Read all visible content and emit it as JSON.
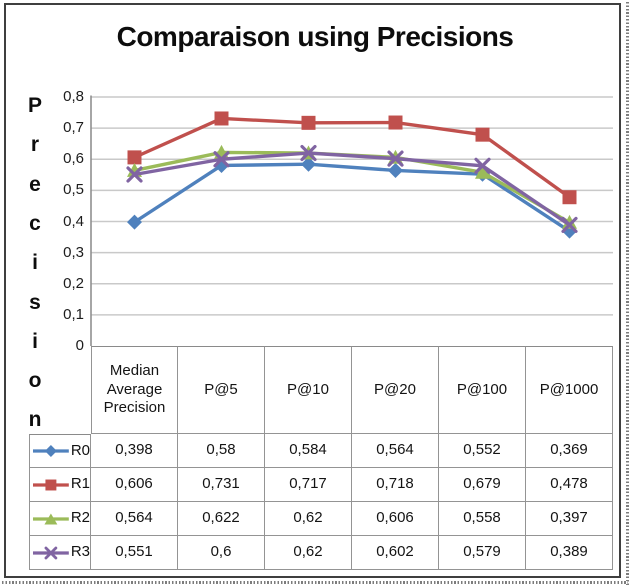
{
  "chart_data": {
    "type": "line",
    "title": "Comparaison using Precisions",
    "ylabel": "Precision",
    "ylabel_letters": [
      "P",
      "r",
      "e",
      "c",
      "i",
      "s",
      "i",
      "o",
      "n"
    ],
    "xlabel": "",
    "categories": [
      "Median Average Precision",
      "P@5",
      "P@10",
      "P@20",
      "P@100",
      "P@1000"
    ],
    "series": [
      {
        "name": "R0",
        "color": "#4F81BD",
        "marker": "diamond",
        "values": [
          0.398,
          0.58,
          0.584,
          0.564,
          0.552,
          0.369
        ],
        "labels": [
          "0,398",
          "0,58",
          "0,584",
          "0,564",
          "0,552",
          "0,369"
        ]
      },
      {
        "name": "R1",
        "color": "#C0504D",
        "marker": "square",
        "values": [
          0.606,
          0.731,
          0.717,
          0.718,
          0.679,
          0.478
        ],
        "labels": [
          "0,606",
          "0,731",
          "0,717",
          "0,718",
          "0,679",
          "0,478"
        ]
      },
      {
        "name": "R2",
        "color": "#9BBB59",
        "marker": "triangle",
        "values": [
          0.564,
          0.622,
          0.62,
          0.606,
          0.558,
          0.397
        ],
        "labels": [
          "0,564",
          "0,622",
          "0,62",
          "0,606",
          "0,558",
          "0,397"
        ]
      },
      {
        "name": "R3",
        "color": "#8064A2",
        "marker": "x",
        "values": [
          0.551,
          0.6,
          0.62,
          0.602,
          0.579,
          0.389
        ],
        "labels": [
          "0,551",
          "0,6",
          "0,62",
          "0,602",
          "0,579",
          "0,389"
        ]
      }
    ],
    "ylim": [
      0,
      0.8
    ],
    "ytick_labels": [
      "0",
      "0,1",
      "0,2",
      "0,3",
      "0,4",
      "0,5",
      "0,6",
      "0,7",
      "0,8"
    ],
    "grid": true,
    "legend_position": "data-table-left-column",
    "decimal_separator": ","
  },
  "colors": {
    "gridline": "#c9c9c9",
    "axis": "#8f8f8f",
    "table_border": "#949494",
    "text": "#141414",
    "frame": "#3f3f3f"
  }
}
